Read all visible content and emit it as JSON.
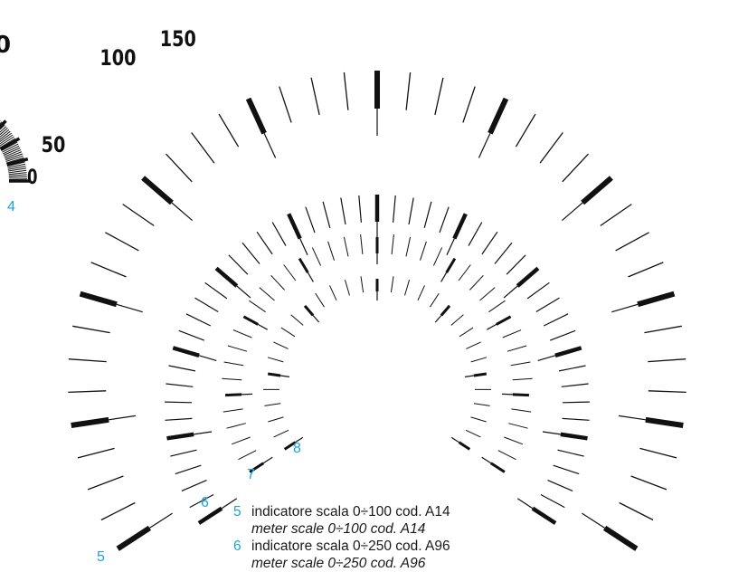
{
  "scale4": {
    "labels": [
      "0",
      "50",
      "100",
      "150"
    ]
  },
  "callouts": {
    "c4": "4",
    "c5": "5",
    "c6": "6",
    "c7": "7",
    "c8": "8"
  },
  "legend": [
    {
      "num": "5",
      "it": "indicatore scala 0÷100 cod. A14",
      "en": "meter scale 0÷100 cod. A14"
    },
    {
      "num": "6",
      "it": "indicatore scala 0÷250 cod. A96",
      "en": "meter scale 0÷250 cod. A96"
    }
  ],
  "colors": {
    "ink": "#111111",
    "callout": "#1aa3dc"
  }
}
